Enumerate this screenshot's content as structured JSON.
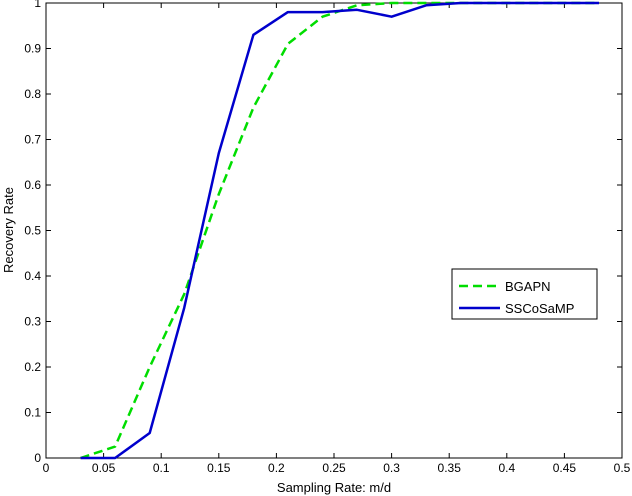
{
  "chart_data": {
    "type": "line",
    "title": "",
    "xlabel": "Sampling Rate: m/d",
    "ylabel": "Recovery Rate",
    "xlim": [
      0,
      0.5
    ],
    "ylim": [
      0,
      1
    ],
    "xticks": [
      "0",
      "0.05",
      "0.1",
      "0.15",
      "0.2",
      "0.25",
      "0.3",
      "0.35",
      "0.4",
      "0.45",
      "0.5"
    ],
    "yticks": [
      "0",
      "0.1",
      "0.2",
      "0.3",
      "0.4",
      "0.5",
      "0.6",
      "0.7",
      "0.8",
      "0.9",
      "1"
    ],
    "grid": false,
    "legend_position": "right",
    "series": [
      {
        "name": "BGAPN",
        "color": "#00dd00",
        "style": "dashed",
        "x": [
          0.03,
          0.06,
          0.09,
          0.12,
          0.15,
          0.18,
          0.21,
          0.24,
          0.27,
          0.3,
          0.33,
          0.36,
          0.39,
          0.42,
          0.45,
          0.48
        ],
        "y": [
          0.0,
          0.025,
          0.2,
          0.36,
          0.58,
          0.77,
          0.91,
          0.97,
          0.995,
          1.0,
          1.0,
          1.0,
          1.0,
          1.0,
          1.0,
          1.0
        ]
      },
      {
        "name": "SSCoSaMP",
        "color": "#0000cc",
        "style": "solid",
        "x": [
          0.03,
          0.06,
          0.09,
          0.12,
          0.15,
          0.18,
          0.21,
          0.24,
          0.27,
          0.3,
          0.33,
          0.36,
          0.39,
          0.42,
          0.45,
          0.48
        ],
        "y": [
          0.0,
          0.0,
          0.055,
          0.33,
          0.67,
          0.93,
          0.98,
          0.98,
          0.985,
          0.97,
          0.995,
          1.0,
          1.0,
          1.0,
          1.0,
          1.0
        ]
      }
    ]
  }
}
